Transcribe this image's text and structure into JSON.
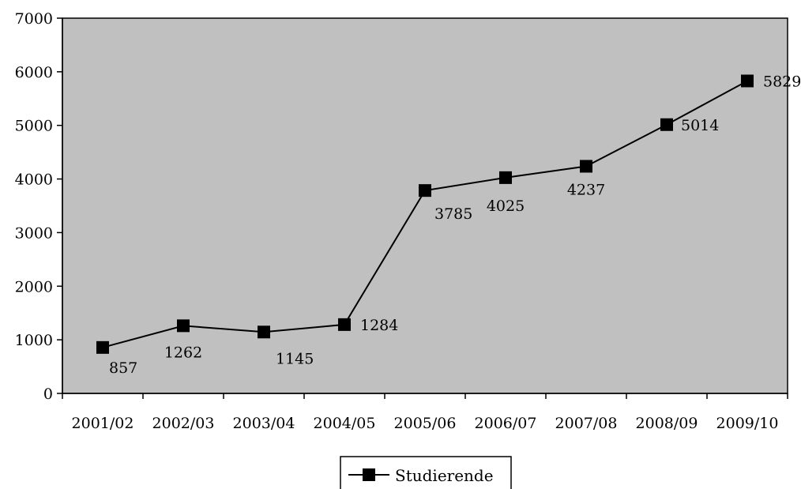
{
  "chart_data": {
    "type": "line",
    "categories": [
      "2001/02",
      "2002/03",
      "2003/04",
      "2004/05",
      "2005/06",
      "2006/07",
      "2007/08",
      "2008/09",
      "2009/10"
    ],
    "series": [
      {
        "name": "Studierende",
        "values": [
          857,
          1262,
          1145,
          1284,
          3785,
          4025,
          4237,
          5014,
          5829
        ]
      }
    ],
    "data_labels": [
      "857",
      "1262",
      "1145",
      "1284",
      "3785",
      "4025",
      "4237",
      "5014",
      "5829"
    ],
    "y_ticks": [
      "0",
      "1000",
      "2000",
      "3000",
      "4000",
      "5000",
      "6000",
      "7000"
    ],
    "ylim": [
      0,
      7000
    ],
    "marker": "square",
    "grid": false,
    "legend_position": "bottom-center",
    "colors": {
      "plot_background": "#c0c0c0",
      "line": "#000000",
      "page_background": "#ffffff"
    }
  }
}
